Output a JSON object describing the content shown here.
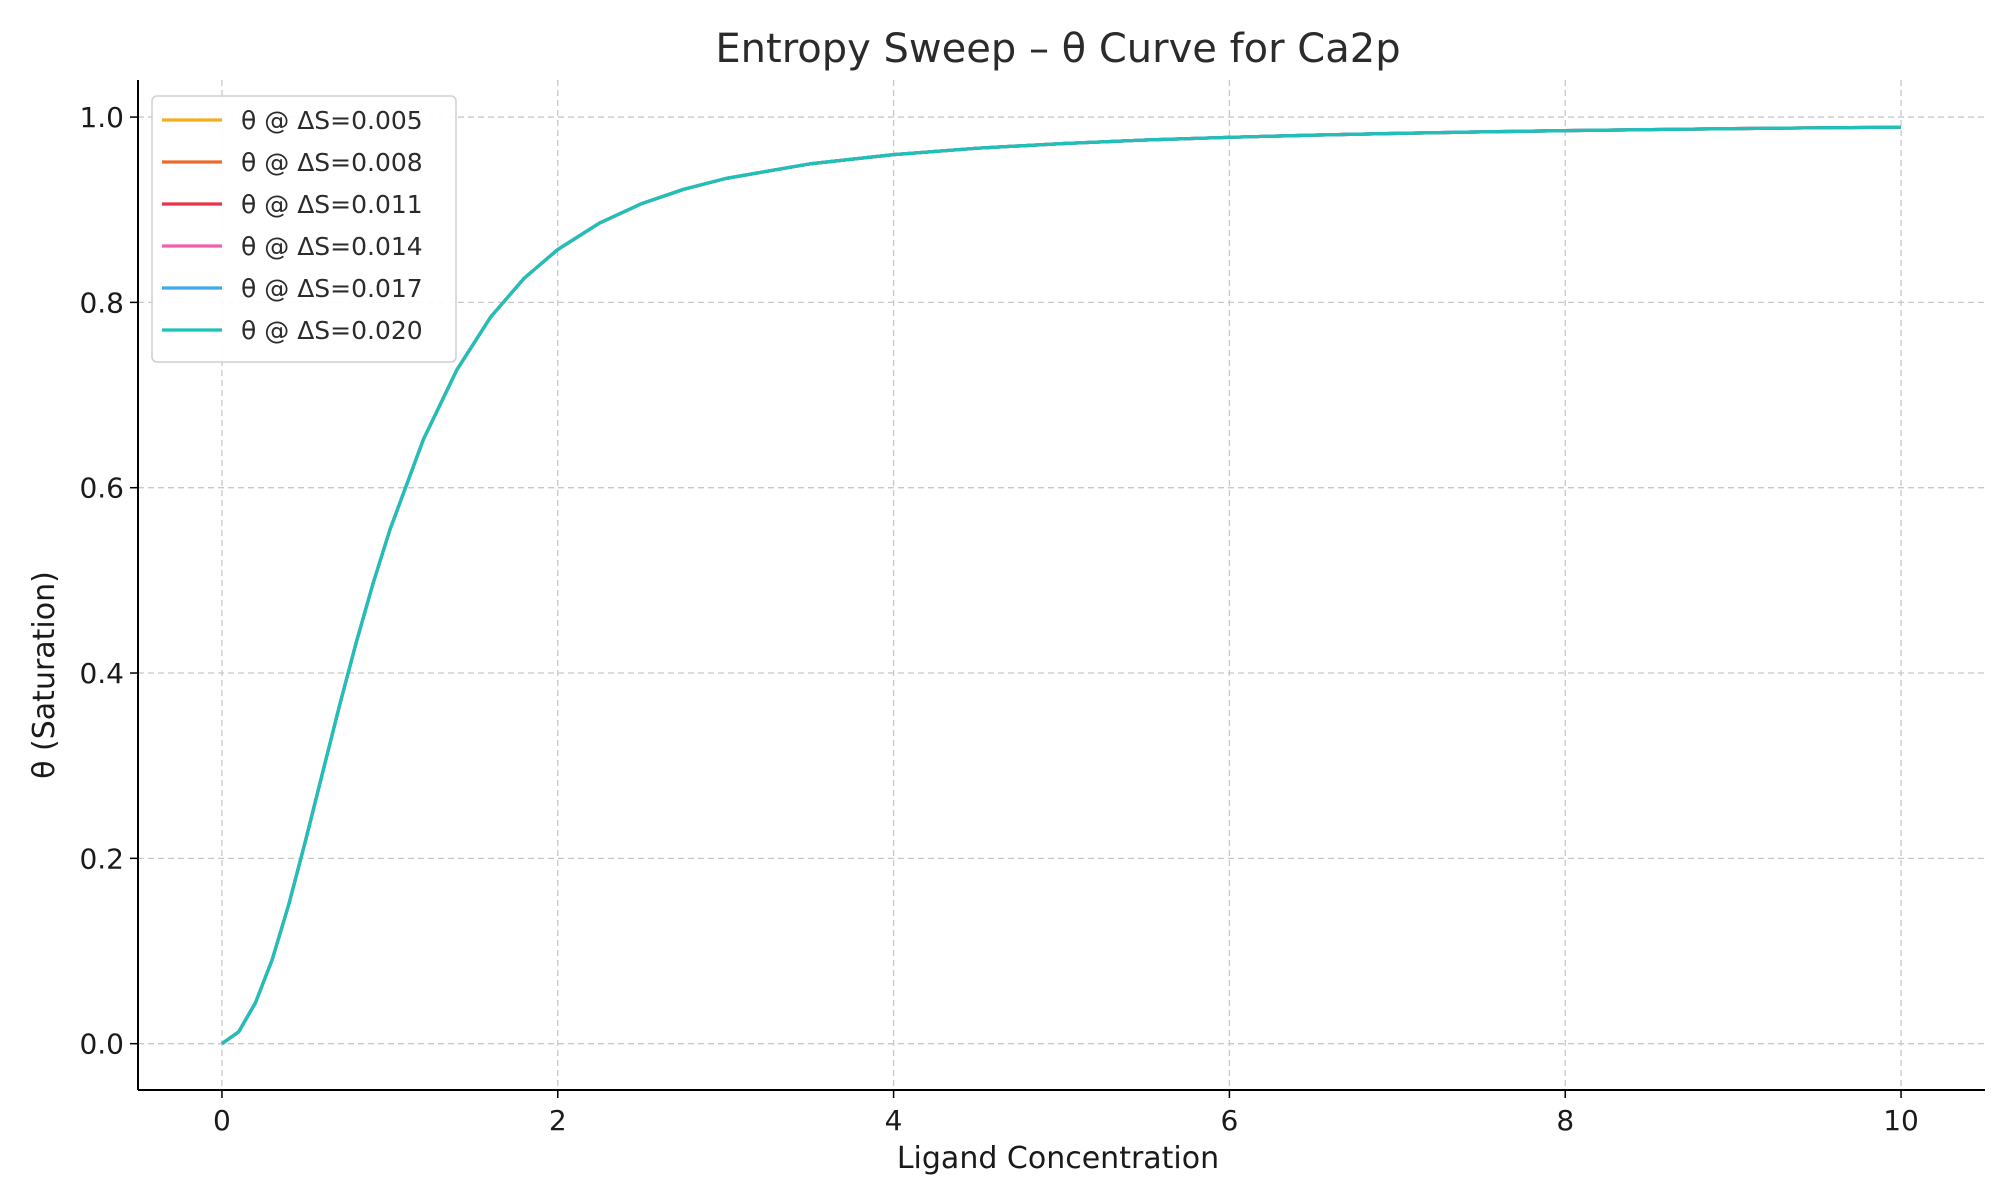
{
  "chart_data": {
    "type": "line",
    "title": "Entropy Sweep – θ Curve for Ca2p",
    "xlabel": "Ligand Concentration",
    "ylabel": "θ (Saturation)",
    "xlim": [
      -0.5,
      10.5
    ],
    "ylim": [
      -0.05,
      1.04
    ],
    "x_ticks": [
      0,
      2,
      4,
      6,
      8,
      10
    ],
    "x_tick_labels": [
      "0",
      "2",
      "4",
      "6",
      "8",
      "10"
    ],
    "y_ticks": [
      0.0,
      0.2,
      0.4,
      0.6,
      0.8,
      1.0
    ],
    "y_tick_labels": [
      "0.0",
      "0.2",
      "0.4",
      "0.6",
      "0.8",
      "1.0"
    ],
    "grid": true,
    "legend_position": "top-left",
    "x": [
      0,
      0.1,
      0.2,
      0.3,
      0.4,
      0.5,
      0.6,
      0.7,
      0.8,
      0.9,
      1.0,
      1.2,
      1.4,
      1.6,
      1.8,
      2.0,
      2.25,
      2.5,
      2.75,
      3.0,
      3.5,
      4.0,
      4.5,
      5.0,
      5.5,
      6.0,
      6.5,
      7.0,
      7.5,
      8.0,
      8.5,
      9.0,
      9.5,
      10.0
    ],
    "series": [
      {
        "name": "θ @ ΔS=0.005",
        "color": "#f5ad1d",
        "values": [
          0,
          0.0128,
          0.0442,
          0.091,
          0.1515,
          0.2207,
          0.2929,
          0.3649,
          0.4333,
          0.4968,
          0.5546,
          0.6521,
          0.7275,
          0.7841,
          0.8261,
          0.8571,
          0.8858,
          0.9066,
          0.922,
          0.9337,
          0.9495,
          0.9595,
          0.9664,
          0.9714,
          0.9752,
          0.9782,
          0.9805,
          0.9824,
          0.984,
          0.9854,
          0.9865,
          0.9875,
          0.9884,
          0.9891
        ]
      },
      {
        "name": "θ @ ΔS=0.008",
        "color": "#ee6a2b",
        "values": [
          0,
          0.0128,
          0.0442,
          0.091,
          0.1515,
          0.2207,
          0.2929,
          0.3649,
          0.4333,
          0.4968,
          0.5546,
          0.6521,
          0.7275,
          0.7841,
          0.8261,
          0.8571,
          0.8858,
          0.9066,
          0.922,
          0.9337,
          0.9495,
          0.9595,
          0.9664,
          0.9714,
          0.9752,
          0.9782,
          0.9805,
          0.9824,
          0.984,
          0.9854,
          0.9865,
          0.9875,
          0.9884,
          0.9891
        ]
      },
      {
        "name": "θ @ ΔS=0.011",
        "color": "#e8334a",
        "values": [
          0,
          0.0128,
          0.0442,
          0.091,
          0.1515,
          0.2207,
          0.2929,
          0.3649,
          0.4333,
          0.4968,
          0.5546,
          0.6521,
          0.7275,
          0.7841,
          0.8261,
          0.8571,
          0.8858,
          0.9066,
          0.922,
          0.9337,
          0.9495,
          0.9595,
          0.9664,
          0.9714,
          0.9752,
          0.9782,
          0.9805,
          0.9824,
          0.984,
          0.9854,
          0.9865,
          0.9875,
          0.9884,
          0.9891
        ]
      },
      {
        "name": "θ @ ΔS=0.014",
        "color": "#ef5fb0",
        "values": [
          0,
          0.0128,
          0.0442,
          0.091,
          0.1515,
          0.2207,
          0.2929,
          0.3649,
          0.4333,
          0.4968,
          0.5546,
          0.6521,
          0.7275,
          0.7841,
          0.8261,
          0.8571,
          0.8858,
          0.9066,
          0.922,
          0.9337,
          0.9495,
          0.9595,
          0.9664,
          0.9714,
          0.9752,
          0.9782,
          0.9805,
          0.9824,
          0.984,
          0.9854,
          0.9865,
          0.9875,
          0.9884,
          0.9891
        ]
      },
      {
        "name": "θ @ ΔS=0.017",
        "color": "#3eaaec",
        "values": [
          0,
          0.0128,
          0.0442,
          0.091,
          0.1515,
          0.2207,
          0.2929,
          0.3649,
          0.4333,
          0.4968,
          0.5546,
          0.6521,
          0.7275,
          0.7841,
          0.8261,
          0.8571,
          0.8858,
          0.9066,
          0.922,
          0.9337,
          0.9495,
          0.9595,
          0.9664,
          0.9714,
          0.9752,
          0.9782,
          0.9805,
          0.9824,
          0.984,
          0.9854,
          0.9865,
          0.9875,
          0.9884,
          0.9891
        ]
      },
      {
        "name": "θ @ ΔS=0.020",
        "color": "#1ec1b7",
        "values": [
          0,
          0.0128,
          0.0442,
          0.091,
          0.1515,
          0.2207,
          0.2929,
          0.3649,
          0.4333,
          0.4968,
          0.5546,
          0.6521,
          0.7275,
          0.7841,
          0.8261,
          0.8571,
          0.8858,
          0.9066,
          0.922,
          0.9337,
          0.9495,
          0.9595,
          0.9664,
          0.9714,
          0.9752,
          0.9782,
          0.9805,
          0.9824,
          0.984,
          0.9854,
          0.9865,
          0.9875,
          0.9884,
          0.9891
        ]
      }
    ]
  }
}
